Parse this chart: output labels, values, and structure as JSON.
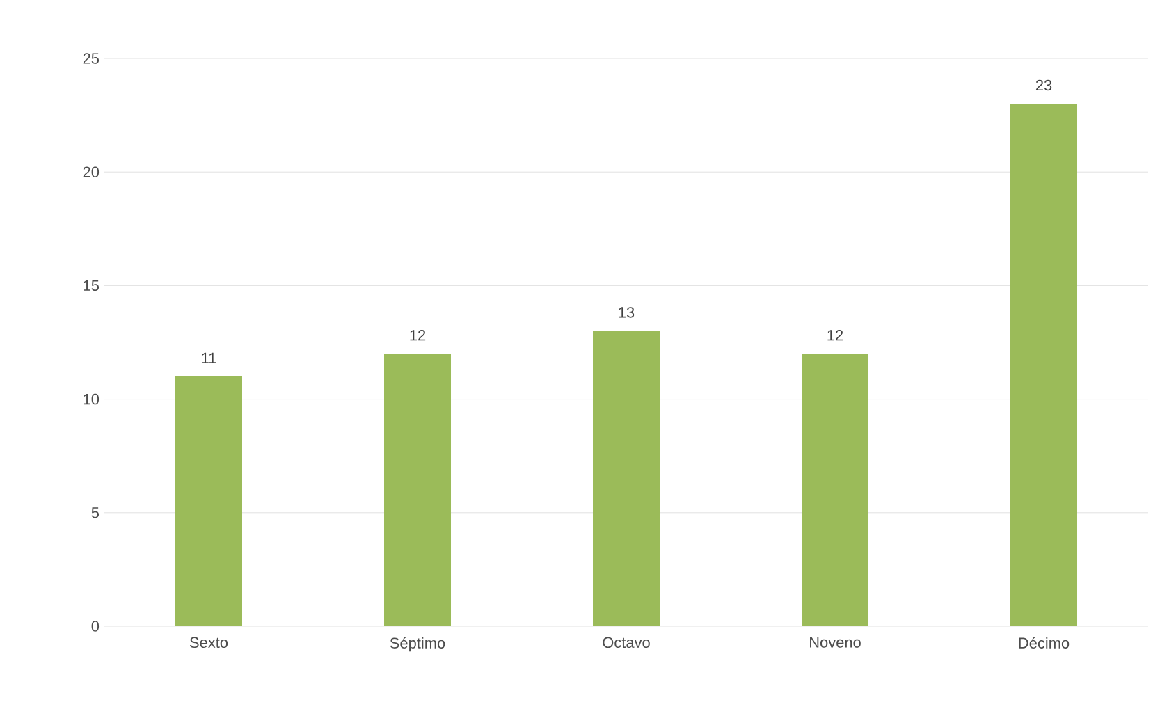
{
  "chart_data": {
    "type": "bar",
    "categories": [
      "Sexto",
      "Séptimo",
      "Octavo",
      "Noveno",
      "Décimo"
    ],
    "values": [
      11,
      12,
      13,
      12,
      23
    ],
    "color": "#9bbb59",
    "ylim": [
      0,
      25
    ],
    "yticks": [
      0,
      5,
      10,
      15,
      20,
      25
    ],
    "grid": "y",
    "data_labels": true
  }
}
